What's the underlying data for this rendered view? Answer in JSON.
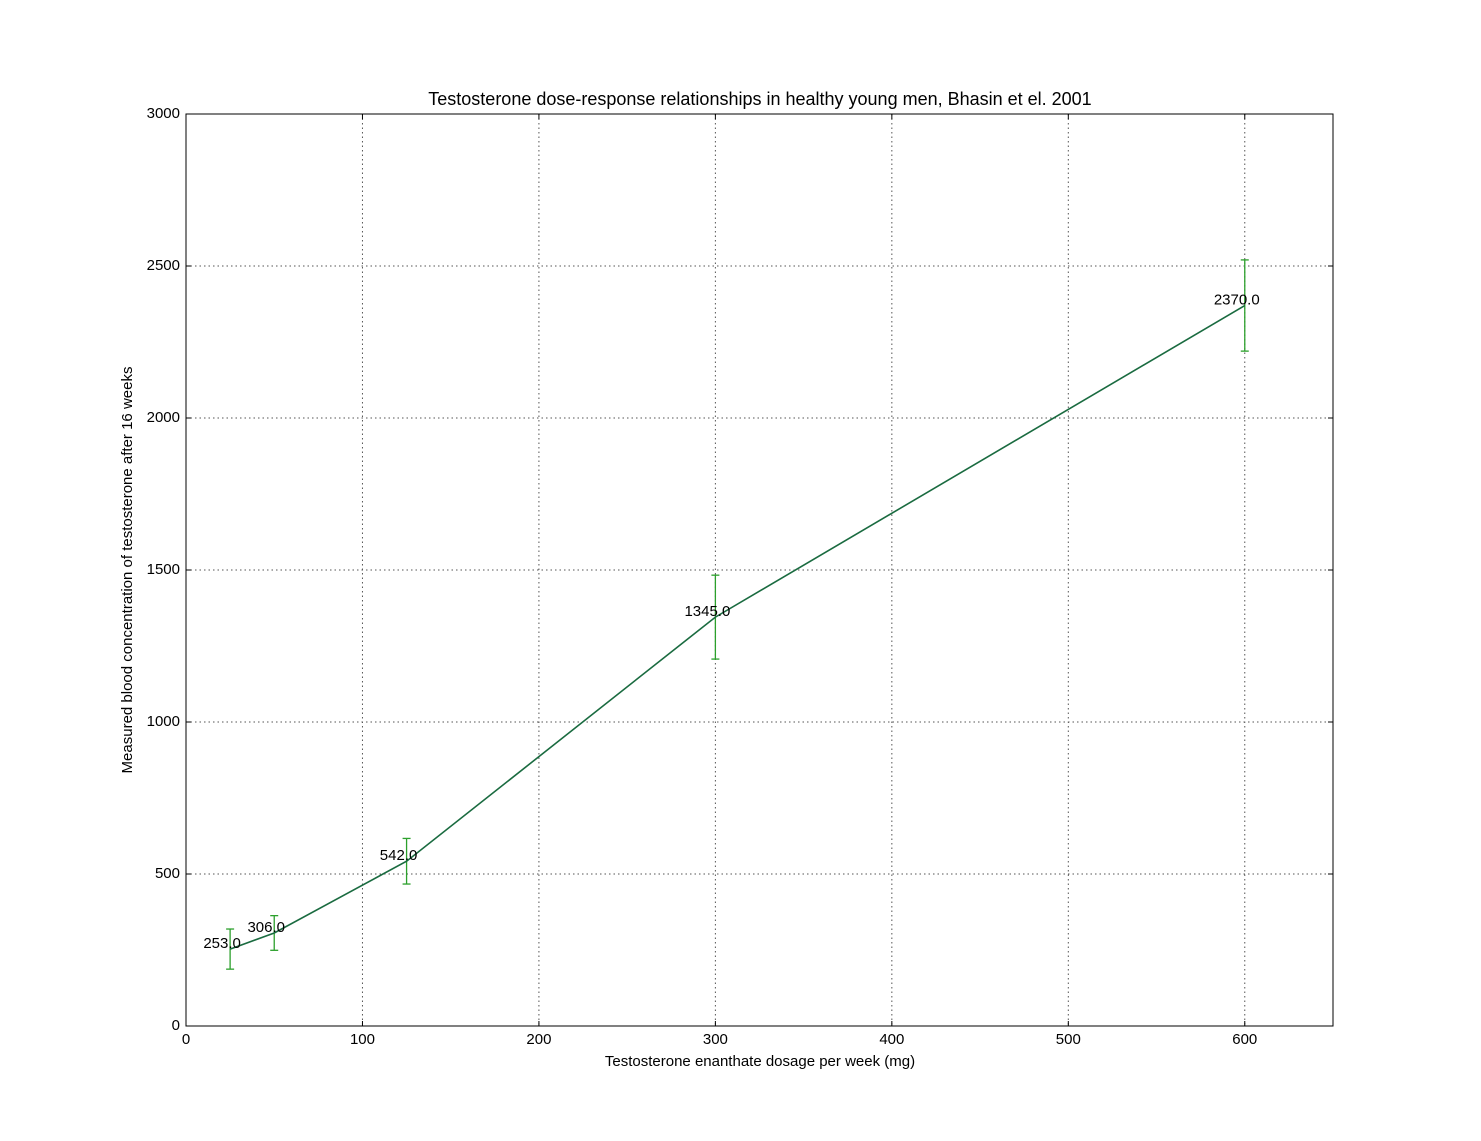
{
  "chart_data": {
    "type": "line",
    "title": "Testosterone dose-response relationships in healthy young men, Bhasin et el. 2001",
    "x_label": "Testosterone enanthate dosage per week (mg)",
    "y_label": "Measured blood concentration of testosterone after 16 weeks",
    "x": [
      25,
      50,
      125,
      300,
      600
    ],
    "series": [
      {
        "color": "#1a6b40",
        "error_color": "#2ca02c",
        "values": [
          253,
          306,
          542,
          1345,
          2370
        ],
        "value_labels": [
          "253.0",
          "306.0",
          "542.0",
          "1345.0",
          "2370.0"
        ],
        "errors": [
          66,
          57,
          75,
          138,
          150
        ]
      }
    ],
    "xlim": [
      0,
      650
    ],
    "xticks": [
      0,
      100,
      200,
      300,
      400,
      500,
      600
    ],
    "ylim": [
      0,
      3000
    ],
    "yticks": [
      0,
      500,
      1000,
      1500,
      2000,
      2500,
      3000
    ],
    "grid": true
  }
}
